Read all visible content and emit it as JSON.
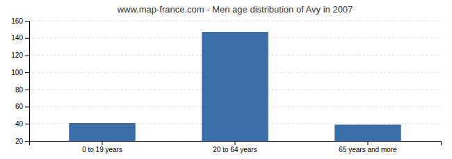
{
  "chart_data": {
    "type": "bar",
    "title": "www.map-france.com - Men age distribution of Avy in 2007",
    "categories": [
      "0 to 19 years",
      "20 to 64 years",
      "65 years and more"
    ],
    "values": [
      41,
      147,
      39
    ],
    "color": "#3a6ea8",
    "ylim": [
      20,
      160
    ],
    "yticks": [
      20,
      40,
      60,
      80,
      100,
      120,
      140,
      160
    ],
    "grid": true
  }
}
